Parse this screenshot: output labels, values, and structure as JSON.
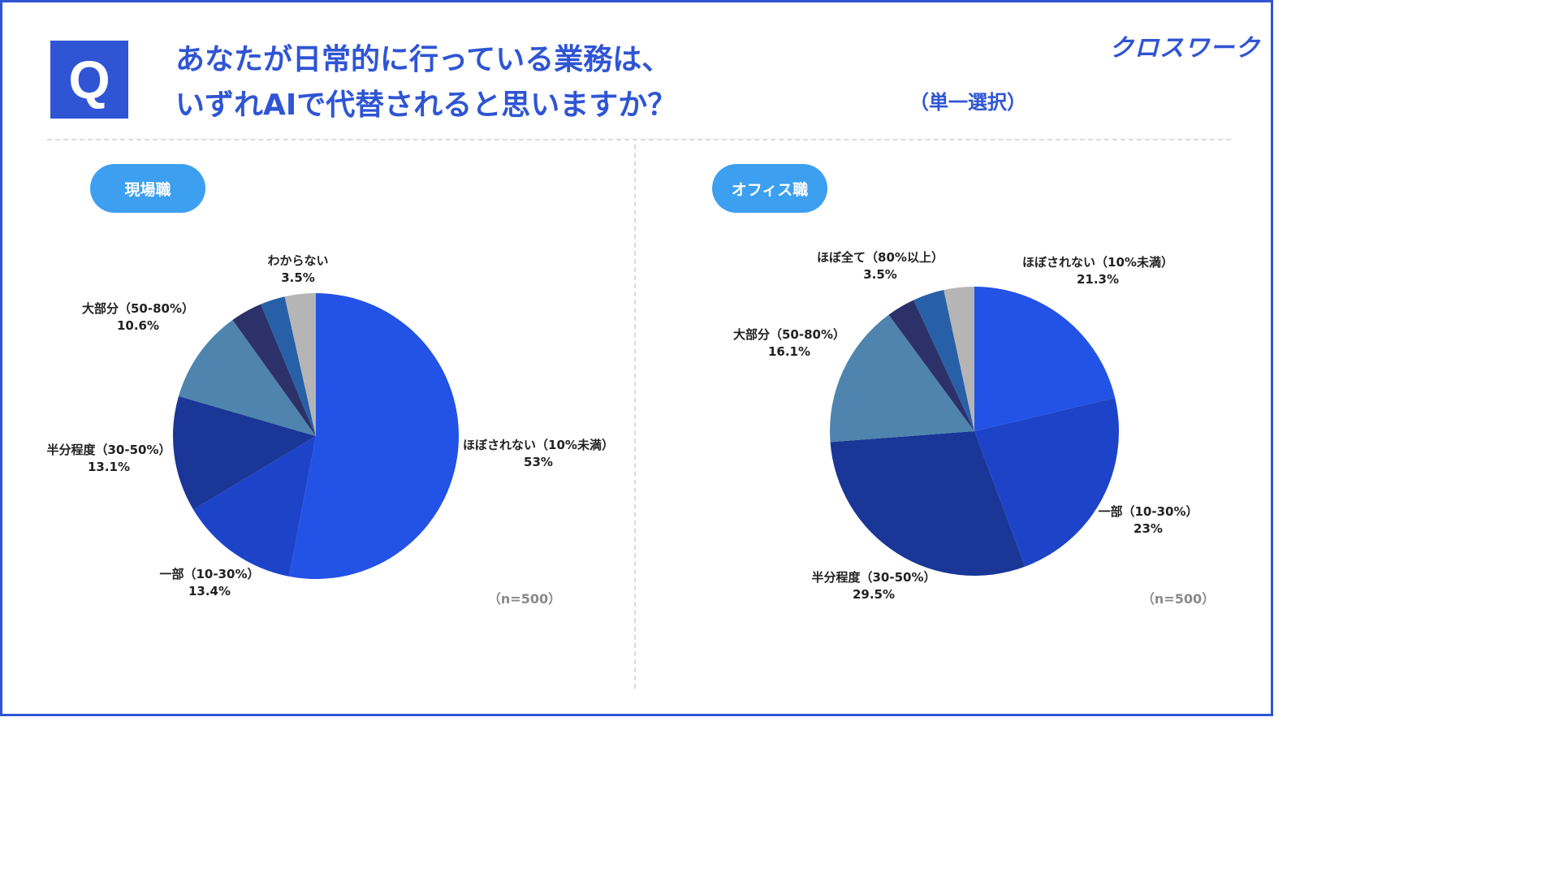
{
  "header": {
    "q_mark": "Q",
    "title_line1": "あなたが日常的に行っている業務は、",
    "title_line2": "いずれAIで代替されると思いますか？",
    "select_note": "（単一選択）",
    "logo": "クロスワーク"
  },
  "panels": [
    {
      "pill": "現場職",
      "n_label": "（n=500）"
    },
    {
      "pill": "オフィス職",
      "n_label": "（n=500）"
    }
  ],
  "colors": {
    "accent": "#2f55d4",
    "pill": "#3d9ff0",
    "slices": [
      "#2352e6",
      "#1d44c8",
      "#1a3696",
      "#4e84ad",
      "#2d3169",
      "#2860a8",
      "#b5b5b5"
    ]
  },
  "chart_data": [
    {
      "type": "pie",
      "title": "",
      "labels": [
        "ほぼされない（10%未満）",
        "一部（10-30%）",
        "半分程度（30-50%）",
        "大部分（50-80%）",
        "",
        "",
        "わからない"
      ],
      "values": [
        53,
        13.4,
        13.1,
        10.6,
        3.6,
        2.8,
        3.5
      ],
      "value_labels": [
        "53%",
        "13.4%",
        "13.1%",
        "10.6%",
        "",
        "",
        "3.5%"
      ],
      "colors": [
        "#2352e6",
        "#1d44c8",
        "#1a3696",
        "#4e84ad",
        "#2d3169",
        "#2860a8",
        "#b5b5b5"
      ]
    },
    {
      "type": "pie",
      "title": "",
      "labels": [
        "ほぼされない（10%未満）",
        "一部（10-30%）",
        "半分程度（30-50%）",
        "大部分（50-80%）",
        "",
        "ほぼ全て（80%以上）",
        ""
      ],
      "values": [
        21.3,
        23,
        29.5,
        16.1,
        3.2,
        3.5,
        3.4
      ],
      "value_labels": [
        "21.3%",
        "23%",
        "29.5%",
        "16.1%",
        "",
        "3.5%",
        ""
      ],
      "colors": [
        "#2352e6",
        "#1d44c8",
        "#1a3696",
        "#4e84ad",
        "#2d3169",
        "#2860a8",
        "#b5b5b5"
      ]
    }
  ]
}
